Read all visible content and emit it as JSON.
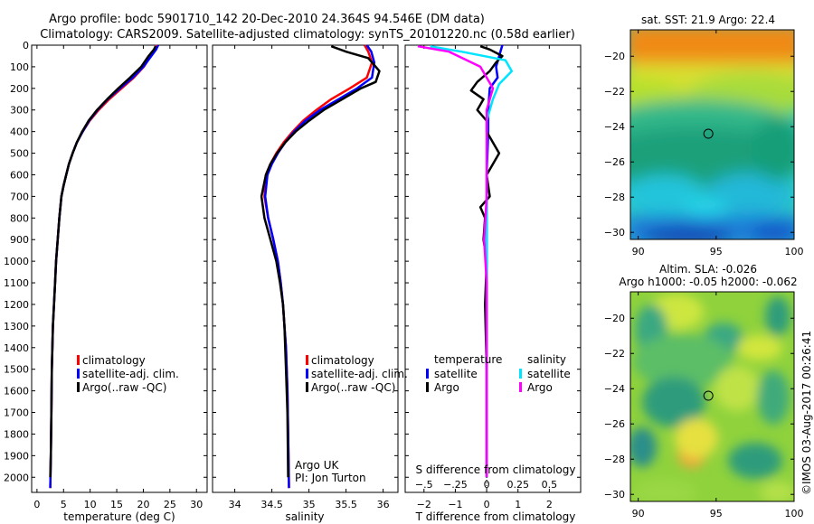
{
  "figure": {
    "title_line1": "Argo profile: bodc 5901710_142 20-Dec-2010 24.364S 94.546E (DM data)",
    "title_line2": "Climatology: CARS2009. Satellite-adjusted climatology: synTS_20101220.nc (0.58d earlier)",
    "side_stamp": "©IMOS 03-Aug-2017 00:26:41",
    "colors": {
      "red": "#ff0000",
      "blue": "#0000ff",
      "black": "#000000",
      "cyan": "#00e5ff",
      "magenta": "#ff00ff"
    }
  },
  "chart_data": [
    {
      "type": "line",
      "xlabel": "temperature (deg C)",
      "xlim": [
        -1,
        32
      ],
      "xticks": [
        0,
        5,
        10,
        15,
        20,
        25,
        30
      ],
      "ylim": [
        0,
        2070
      ],
      "yticks": [
        0,
        100,
        200,
        300,
        400,
        500,
        600,
        700,
        800,
        900,
        1000,
        1100,
        1200,
        1300,
        1400,
        1500,
        1600,
        1700,
        1800,
        1900,
        2000
      ],
      "y_inverted": true,
      "legend": {
        "placement": "lower-center",
        "entries": [
          "climatology",
          "satellite-adj. clim.",
          "Argo(..raw -QC)"
        ]
      },
      "series": [
        {
          "name": "climatology",
          "color": "red",
          "x": [
            22.5,
            22.2,
            21.4,
            20.1,
            18.2,
            15.9,
            13.6,
            11.6,
            9.9,
            8.6,
            7.5,
            6.7,
            6.0,
            5.5,
            5.0,
            4.6,
            4.2,
            3.9,
            3.6,
            3.4,
            3.2,
            3.0,
            2.9,
            2.8,
            2.7,
            2.6,
            2.5
          ],
          "y": [
            0,
            20,
            50,
            100,
            150,
            200,
            250,
            300,
            350,
            400,
            450,
            500,
            550,
            600,
            650,
            700,
            800,
            900,
            1000,
            1100,
            1200,
            1300,
            1400,
            1500,
            1700,
            1900,
            2050
          ]
        },
        {
          "name": "satellite-adj. clim.",
          "color": "blue",
          "x": [
            22.8,
            22.4,
            21.5,
            20.0,
            18.0,
            15.6,
            13.3,
            11.4,
            9.8,
            8.6,
            7.5,
            6.7,
            6.0,
            5.5,
            5.0,
            4.6,
            4.2,
            3.9,
            3.6,
            3.4,
            3.2,
            3.0,
            2.9,
            2.8,
            2.7,
            2.6,
            2.5
          ],
          "y": [
            0,
            20,
            50,
            100,
            150,
            200,
            250,
            300,
            350,
            400,
            450,
            500,
            550,
            600,
            650,
            700,
            800,
            900,
            1000,
            1100,
            1200,
            1300,
            1400,
            1500,
            1700,
            1900,
            2050
          ]
        },
        {
          "name": "Argo(..raw -QC)",
          "color": "black",
          "x": [
            22.3,
            22.0,
            21.0,
            19.6,
            17.5,
            15.3,
            13.2,
            11.3,
            9.7,
            8.5,
            7.5,
            6.7,
            6.0,
            5.5,
            5.0,
            4.6,
            4.2,
            3.9,
            3.6,
            3.4,
            3.2,
            3.0,
            2.9,
            2.8,
            2.7,
            2.6,
            2.5
          ],
          "y": [
            5,
            20,
            50,
            100,
            150,
            200,
            250,
            300,
            350,
            400,
            450,
            500,
            550,
            600,
            650,
            700,
            800,
            900,
            1000,
            1100,
            1200,
            1300,
            1400,
            1500,
            1700,
            1900,
            2000
          ]
        }
      ]
    },
    {
      "type": "line",
      "xlabel": "salinity",
      "xlim": [
        33.7,
        36.2
      ],
      "xticks": [
        34,
        34.5,
        35,
        35.5,
        36
      ],
      "ylim": [
        0,
        2070
      ],
      "y_inverted": true,
      "legend": {
        "placement": "lower-right",
        "entries": [
          "climatology",
          "satellite-adj. clim.",
          "Argo(..raw -QC)"
        ]
      },
      "annotations": [
        "Argo UK",
        "PI: Jon Turton"
      ],
      "series": [
        {
          "name": "climatology",
          "color": "red",
          "x": [
            35.75,
            35.8,
            35.85,
            35.78,
            35.55,
            35.3,
            35.1,
            34.92,
            34.78,
            34.66,
            34.56,
            34.48,
            34.42,
            34.4,
            34.45,
            34.52,
            34.58,
            34.62,
            34.65,
            34.67,
            34.69,
            34.71,
            34.72,
            34.73
          ],
          "y": [
            0,
            30,
            80,
            150,
            200,
            250,
            300,
            350,
            400,
            450,
            500,
            550,
            600,
            700,
            800,
            900,
            1000,
            1100,
            1200,
            1300,
            1400,
            1600,
            1800,
            2050
          ]
        },
        {
          "name": "satellite-adj. clim.",
          "color": "blue",
          "x": [
            35.78,
            35.84,
            35.88,
            35.85,
            35.65,
            35.4,
            35.15,
            34.95,
            34.8,
            34.68,
            34.58,
            34.5,
            34.44,
            34.41,
            34.45,
            34.52,
            34.58,
            34.62,
            34.65,
            34.67,
            34.69,
            34.71,
            34.72,
            34.73
          ],
          "y": [
            0,
            30,
            80,
            150,
            200,
            250,
            300,
            350,
            400,
            450,
            500,
            550,
            600,
            700,
            800,
            900,
            1000,
            1100,
            1200,
            1300,
            1400,
            1600,
            1800,
            2050
          ]
        },
        {
          "name": "Argo(..raw -QC)",
          "color": "black",
          "x": [
            35.3,
            35.5,
            35.8,
            35.95,
            35.9,
            35.7,
            35.45,
            35.2,
            35.0,
            34.82,
            34.68,
            34.57,
            34.48,
            34.42,
            34.36,
            34.4,
            34.48,
            34.56,
            34.61,
            34.65,
            34.67,
            34.69,
            34.71,
            34.72
          ],
          "y": [
            5,
            30,
            60,
            120,
            170,
            200,
            250,
            300,
            350,
            400,
            450,
            500,
            550,
            600,
            700,
            800,
            900,
            1000,
            1100,
            1200,
            1300,
            1500,
            1700,
            2000
          ]
        }
      ]
    },
    {
      "type": "line",
      "xlabel": "T difference from climatology",
      "xlabel_top": "S difference from climatology",
      "xlim": [
        -2.6,
        3.0
      ],
      "xticks": [
        -2,
        -1,
        0,
        1,
        2
      ],
      "xticks_top": [
        -0.5,
        -0.25,
        0,
        0.25,
        0.5
      ],
      "ylim": [
        0,
        2070
      ],
      "y_inverted": true,
      "legend": {
        "placement": "lower-center",
        "headers": [
          "temperature",
          "salinity"
        ],
        "entries": [
          "satellite",
          "Argo",
          "satellite",
          "Argo"
        ]
      },
      "series": [
        {
          "name": "temperature satellite",
          "color": "blue",
          "x": [
            0.5,
            0.4,
            0.3,
            0.35,
            0.1,
            0.05,
            0.05,
            0.0,
            0.0,
            0.0,
            0.0,
            0.0,
            0.0
          ],
          "y": [
            0,
            50,
            100,
            150,
            200,
            300,
            400,
            600,
            800,
            1000,
            1300,
            1600,
            2000
          ]
        },
        {
          "name": "temperature Argo",
          "color": "black",
          "x": [
            -0.2,
            0.1,
            0.5,
            0.3,
            0.1,
            -0.3,
            -0.5,
            -0.1,
            -0.3,
            0.0,
            0.0,
            0.4,
            0.0,
            0.1,
            -0.2,
            -0.05,
            -0.1,
            0.0,
            -0.05,
            0.0,
            0.0
          ],
          "y": [
            5,
            20,
            50,
            80,
            120,
            170,
            210,
            250,
            300,
            350,
            400,
            500,
            600,
            700,
            750,
            800,
            900,
            1000,
            1200,
            1500,
            2000
          ]
        },
        {
          "name": "salinity satellite",
          "color": "cyan",
          "x": [
            -0.45,
            -0.2,
            0.15,
            0.2,
            0.1,
            0.05,
            0.0,
            0.0,
            0.0,
            0.0,
            0.0,
            0.0
          ],
          "y": [
            5,
            30,
            70,
            120,
            180,
            250,
            350,
            500,
            700,
            1000,
            1400,
            2000
          ]
        },
        {
          "name": "salinity Argo",
          "color": "magenta",
          "x": [
            -0.55,
            -0.3,
            -0.05,
            0.05,
            0.0,
            0.0,
            0.0,
            -0.02,
            0.0,
            0.0,
            0.0,
            0.0
          ],
          "y": [
            5,
            30,
            100,
            200,
            300,
            500,
            700,
            900,
            1100,
            1400,
            1700,
            2000
          ]
        }
      ]
    },
    {
      "type": "heatmap",
      "title": "sat. SST: 21.9  Argo: 22.4",
      "xlim": [
        89.5,
        100
      ],
      "xticks": [
        90,
        95,
        100
      ],
      "ylim": [
        -30.4,
        -18.5
      ],
      "yticks": [
        -20,
        -22,
        -24,
        -26,
        -28,
        -30
      ],
      "marker": {
        "x": 94.5,
        "y": -24.4
      },
      "palette": [
        "dark-blue",
        "blue",
        "cyan",
        "green",
        "yellow",
        "orange"
      ]
    },
    {
      "type": "heatmap",
      "title_line1": "Altim. SLA: -0.026",
      "title_line2": "Argo h1000: -0.05  h2000: -0.062",
      "xlim": [
        89.5,
        100
      ],
      "xticks": [
        90,
        95,
        100
      ],
      "ylim": [
        -30.4,
        -18.5
      ],
      "yticks": [
        -20,
        -22,
        -24,
        -26,
        -28,
        -30
      ],
      "marker": {
        "x": 94.5,
        "y": -24.4
      },
      "palette": [
        "teal",
        "green",
        "light-green",
        "yellow",
        "orange"
      ]
    }
  ]
}
